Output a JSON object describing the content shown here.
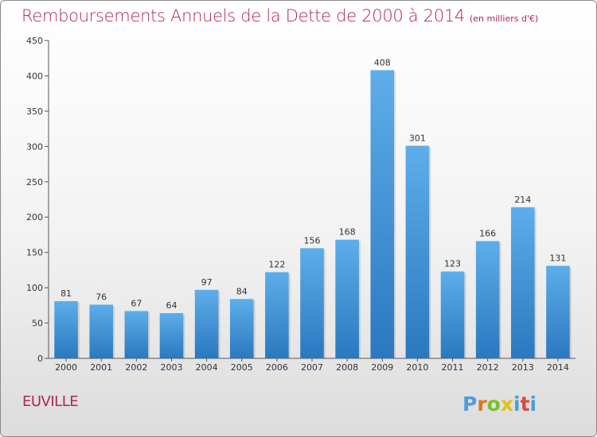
{
  "title": "Remboursements Annuels de la Dette de 2000 à 2014",
  "unit": "(en milliers d'€)",
  "commune": "EUVILLE",
  "brand": "Proxiti",
  "colors": {
    "title": "#b2245c",
    "bar_top": "#5daeea",
    "bar_bottom": "#2a78bf",
    "logo": [
      "#4a9fd8",
      "#e0731f",
      "#7bbf26",
      "#e0c21a",
      "#4a9fd8",
      "#e0473a",
      "#4a9fd8"
    ]
  },
  "chart_data": {
    "type": "bar",
    "title": "Remboursements Annuels de la Dette de 2000 à 2014",
    "ylabel": "",
    "xlabel": "",
    "categories": [
      "2000",
      "2001",
      "2002",
      "2003",
      "2004",
      "2005",
      "2006",
      "2007",
      "2008",
      "2009",
      "2010",
      "2011",
      "2012",
      "2013",
      "2014"
    ],
    "values": [
      81,
      76,
      67,
      64,
      97,
      84,
      122,
      156,
      168,
      408,
      301,
      123,
      166,
      214,
      131
    ],
    "ylim": [
      0,
      450
    ],
    "yticks": [
      0,
      50,
      100,
      150,
      200,
      250,
      300,
      350,
      400,
      450
    ],
    "grid": false,
    "data_labels": true
  }
}
